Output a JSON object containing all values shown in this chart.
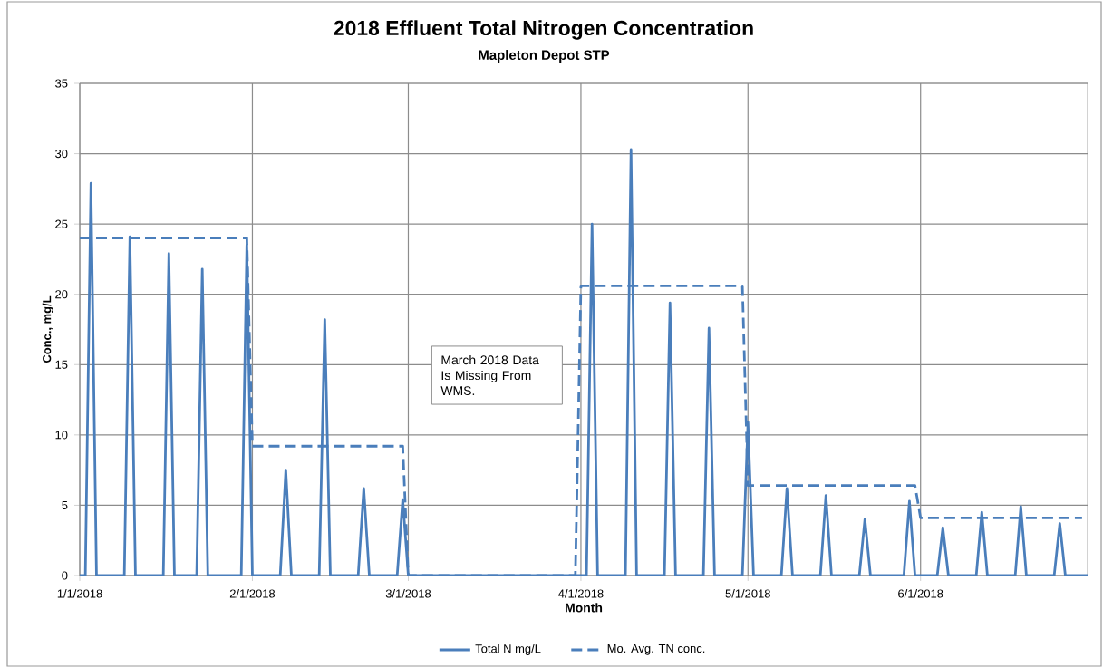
{
  "chart_data": {
    "type": "line",
    "title": "2018 Effluent Total Nitrogen Concentration",
    "subtitle": "Mapleton Depot STP",
    "xlabel": "Month",
    "ylabel": "Conc., mg/L",
    "annotations": [
      "March 2018 Data Is Missing From WMS."
    ],
    "xlim": [
      "2018-01-01",
      "2018-07-01"
    ],
    "xticks": [
      {
        "value": "2018-01-01",
        "label": "1/1/2018"
      },
      {
        "value": "2018-02-01",
        "label": "2/1/2018"
      },
      {
        "value": "2018-03-01",
        "label": "3/1/2018"
      },
      {
        "value": "2018-04-01",
        "label": "4/1/2018"
      },
      {
        "value": "2018-05-01",
        "label": "5/1/2018"
      },
      {
        "value": "2018-06-01",
        "label": "6/1/2018"
      }
    ],
    "ylim": [
      0,
      35
    ],
    "yticks": [
      0,
      5,
      10,
      15,
      20,
      25,
      30,
      35
    ],
    "grid": true,
    "legend": "bottom",
    "marker": "none",
    "series": [
      {
        "name": "Total N mg/L",
        "color": "#4a7ebb",
        "line_style": "solid",
        "x": [
          "2018-01-01",
          "2018-01-02",
          "2018-01-03",
          "2018-01-04",
          "2018-01-09",
          "2018-01-10",
          "2018-01-11",
          "2018-01-16",
          "2018-01-17",
          "2018-01-18",
          "2018-01-22",
          "2018-01-23",
          "2018-01-24",
          "2018-01-30",
          "2018-01-31",
          "2018-02-01",
          "2018-02-06",
          "2018-02-07",
          "2018-02-08",
          "2018-02-13",
          "2018-02-14",
          "2018-02-15",
          "2018-02-20",
          "2018-02-21",
          "2018-02-22",
          "2018-02-27",
          "2018-02-28",
          "2018-03-01",
          "2018-04-02",
          "2018-04-03",
          "2018-04-04",
          "2018-04-09",
          "2018-04-10",
          "2018-04-11",
          "2018-04-16",
          "2018-04-17",
          "2018-04-18",
          "2018-04-23",
          "2018-04-24",
          "2018-04-25",
          "2018-04-30",
          "2018-05-01",
          "2018-05-02",
          "2018-05-07",
          "2018-05-08",
          "2018-05-09",
          "2018-05-14",
          "2018-05-15",
          "2018-05-16",
          "2018-05-21",
          "2018-05-22",
          "2018-05-23",
          "2018-05-29",
          "2018-05-30",
          "2018-05-31",
          "2018-06-04",
          "2018-06-05",
          "2018-06-06",
          "2018-06-11",
          "2018-06-12",
          "2018-06-13",
          "2018-06-18",
          "2018-06-19",
          "2018-06-20",
          "2018-06-25",
          "2018-06-26",
          "2018-06-27",
          "2018-07-01"
        ],
        "values": [
          0,
          0,
          27.9,
          0,
          0,
          24.1,
          0,
          0,
          22.9,
          0,
          0,
          21.8,
          0,
          0,
          23.5,
          0,
          0,
          7.5,
          0,
          0,
          18.2,
          0,
          0,
          6.2,
          0,
          0,
          5.4,
          0,
          0,
          25.0,
          0,
          0,
          30.3,
          0,
          0,
          19.4,
          0,
          0,
          17.6,
          0,
          0,
          10.9,
          0,
          0,
          6.2,
          0,
          0,
          5.7,
          0,
          0,
          4.0,
          0,
          0,
          5.3,
          0,
          0,
          3.4,
          0,
          0,
          4.5,
          0,
          0,
          4.9,
          0,
          0,
          3.7,
          0,
          0
        ]
      },
      {
        "name": "Mo. Avg.  TN conc.",
        "color": "#4a7ebb",
        "line_style": "dashed",
        "x": [
          "2018-01-01",
          "2018-01-31",
          "2018-02-01",
          "2018-02-28",
          "2018-03-01",
          "2018-03-31",
          "2018-04-01",
          "2018-04-30",
          "2018-05-01",
          "2018-05-31",
          "2018-06-01",
          "2018-06-30"
        ],
        "values": [
          24.0,
          24.0,
          9.2,
          9.2,
          0,
          0,
          20.6,
          20.6,
          6.4,
          6.4,
          4.1,
          4.1
        ]
      }
    ]
  }
}
